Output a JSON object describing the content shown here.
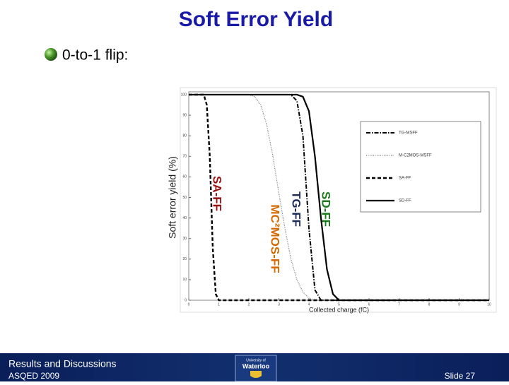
{
  "slide": {
    "title": "Soft Error Yield",
    "bullet": "0-to-1 flip:",
    "footer": {
      "section": "Results and Discussions",
      "event": "ASQED 2009",
      "slide_number": "Slide 27",
      "logo": {
        "top": "University of",
        "name": "Waterloo"
      }
    }
  },
  "chart_data": {
    "type": "line",
    "xlabel": "Collected charge (fC)",
    "ylabel": "Soft error yield (%)",
    "x": [
      0,
      0.5,
      0.6,
      0.7,
      0.8,
      0.9,
      1,
      2,
      2.2,
      2.4,
      2.6,
      2.8,
      3,
      3.2,
      3.4,
      3.6,
      3.8,
      4,
      4.2,
      4.4,
      4.6,
      4.8,
      5,
      6,
      7,
      8,
      9,
      10
    ],
    "series": [
      {
        "name": "TG-MSFF",
        "color": "#000000",
        "style": "dashdot",
        "values": [
          100,
          100,
          100,
          100,
          100,
          100,
          100,
          100,
          100,
          100,
          100,
          100,
          100,
          100,
          100,
          97,
          80,
          35,
          5,
          0,
          0,
          0,
          0,
          0,
          0,
          0,
          0,
          0
        ]
      },
      {
        "name": "M-C2MOS-MSFF",
        "color": "#777777",
        "style": "dotted",
        "values": [
          100,
          100,
          100,
          100,
          100,
          100,
          100,
          100,
          99,
          95,
          85,
          70,
          52,
          35,
          20,
          10,
          4,
          1,
          0,
          0,
          0,
          0,
          0,
          0,
          0,
          0,
          0,
          0
        ]
      },
      {
        "name": "SA-FF",
        "color": "#000000",
        "style": "dashed",
        "values": [
          100,
          100,
          95,
          70,
          25,
          3,
          0,
          0,
          0,
          0,
          0,
          0,
          0,
          0,
          0,
          0,
          0,
          0,
          0,
          0,
          0,
          0,
          0,
          0,
          0,
          0,
          0,
          0
        ]
      },
      {
        "name": "SD-FF",
        "color": "#000000",
        "style": "solid",
        "values": [
          100,
          100,
          100,
          100,
          100,
          100,
          100,
          100,
          100,
          100,
          100,
          100,
          100,
          100,
          100,
          100,
          99,
          92,
          70,
          40,
          15,
          3,
          0,
          0,
          0,
          0,
          0,
          0
        ]
      }
    ],
    "annotations": [
      {
        "text": "SD-FF",
        "color": "#1a7a1a"
      },
      {
        "text": "TG-FF",
        "color": "#1c2a5a"
      },
      {
        "text": "MC²MOS-FF",
        "color": "#d46a00"
      },
      {
        "text": "SA-FF",
        "color": "#9a1010"
      }
    ],
    "xlim": [
      0,
      10
    ],
    "xticks": [
      0,
      1,
      2,
      3,
      4,
      5,
      6,
      7,
      8,
      9,
      10
    ],
    "ylim": [
      0,
      100
    ],
    "yticks": [
      0,
      10,
      20,
      30,
      40,
      50,
      60,
      70,
      80,
      90,
      100
    ],
    "grid": false,
    "legend": "right"
  }
}
